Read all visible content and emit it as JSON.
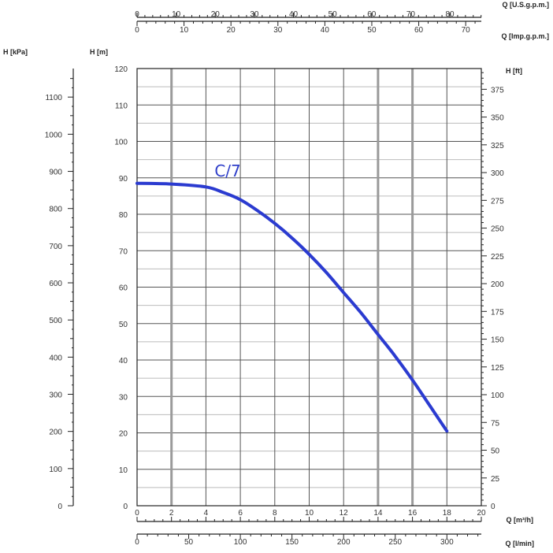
{
  "chart_data": {
    "type": "line",
    "colors": {
      "curve": "#2b3bd0",
      "grid": "#555555",
      "grid_minor": "#bbbbbb",
      "axis": "#222222",
      "text": "#333333"
    },
    "units": {
      "usgpm": "Q [U.S.g.p.m.]",
      "impgpm": "Q [Imp.g.p.m.]",
      "kpa": "H [kPa]",
      "m": "H [m]",
      "ft": "H [ft]",
      "m3h": "Q [m³/h]",
      "lmin": "Q [l/min]"
    },
    "x_m3h": {
      "ticks": [
        "0",
        "2",
        "4",
        "6",
        "8",
        "10",
        "12",
        "14",
        "16",
        "18",
        "20"
      ],
      "range": [
        0,
        20
      ]
    },
    "x_lmin": {
      "ticks": [
        "0",
        "50",
        "100",
        "150",
        "200",
        "250",
        "300"
      ],
      "range": [
        0,
        333.33
      ]
    },
    "x_usgpm": {
      "ticks": [
        "0",
        "10",
        "20",
        "30",
        "40",
        "50",
        "60",
        "70",
        "80"
      ],
      "range": [
        0,
        88.06
      ]
    },
    "x_impgpm": {
      "ticks": [
        "0",
        "10",
        "20",
        "30",
        "40",
        "50",
        "60",
        "70"
      ],
      "range": [
        0,
        73.33
      ]
    },
    "y_m": {
      "ticks": [
        "0",
        "10",
        "20",
        "30",
        "40",
        "50",
        "60",
        "70",
        "80",
        "90",
        "100",
        "110",
        "120"
      ],
      "range": [
        0,
        120
      ]
    },
    "y_kpa": {
      "ticks": [
        "0",
        "100",
        "200",
        "300",
        "400",
        "500",
        "600",
        "700",
        "800",
        "900",
        "1000",
        "1100"
      ],
      "range": [
        0,
        1176.8
      ]
    },
    "y_ft": {
      "ticks": [
        "0",
        "25",
        "50",
        "75",
        "100",
        "125",
        "150",
        "175",
        "200",
        "225",
        "250",
        "275",
        "300",
        "325",
        "350",
        "375"
      ],
      "range": [
        0,
        393.7
      ]
    },
    "series": [
      {
        "name": "C/7",
        "x": [
          0,
          2,
          4,
          5,
          6,
          7,
          8,
          9,
          10,
          11,
          12,
          13,
          14,
          15,
          16,
          17,
          18
        ],
        "y": [
          88.5,
          88.3,
          87.5,
          86.0,
          84.0,
          81.0,
          77.5,
          73.5,
          69.0,
          64.0,
          58.5,
          53.0,
          47.0,
          41.0,
          34.5,
          27.5,
          20.5
        ]
      }
    ]
  }
}
